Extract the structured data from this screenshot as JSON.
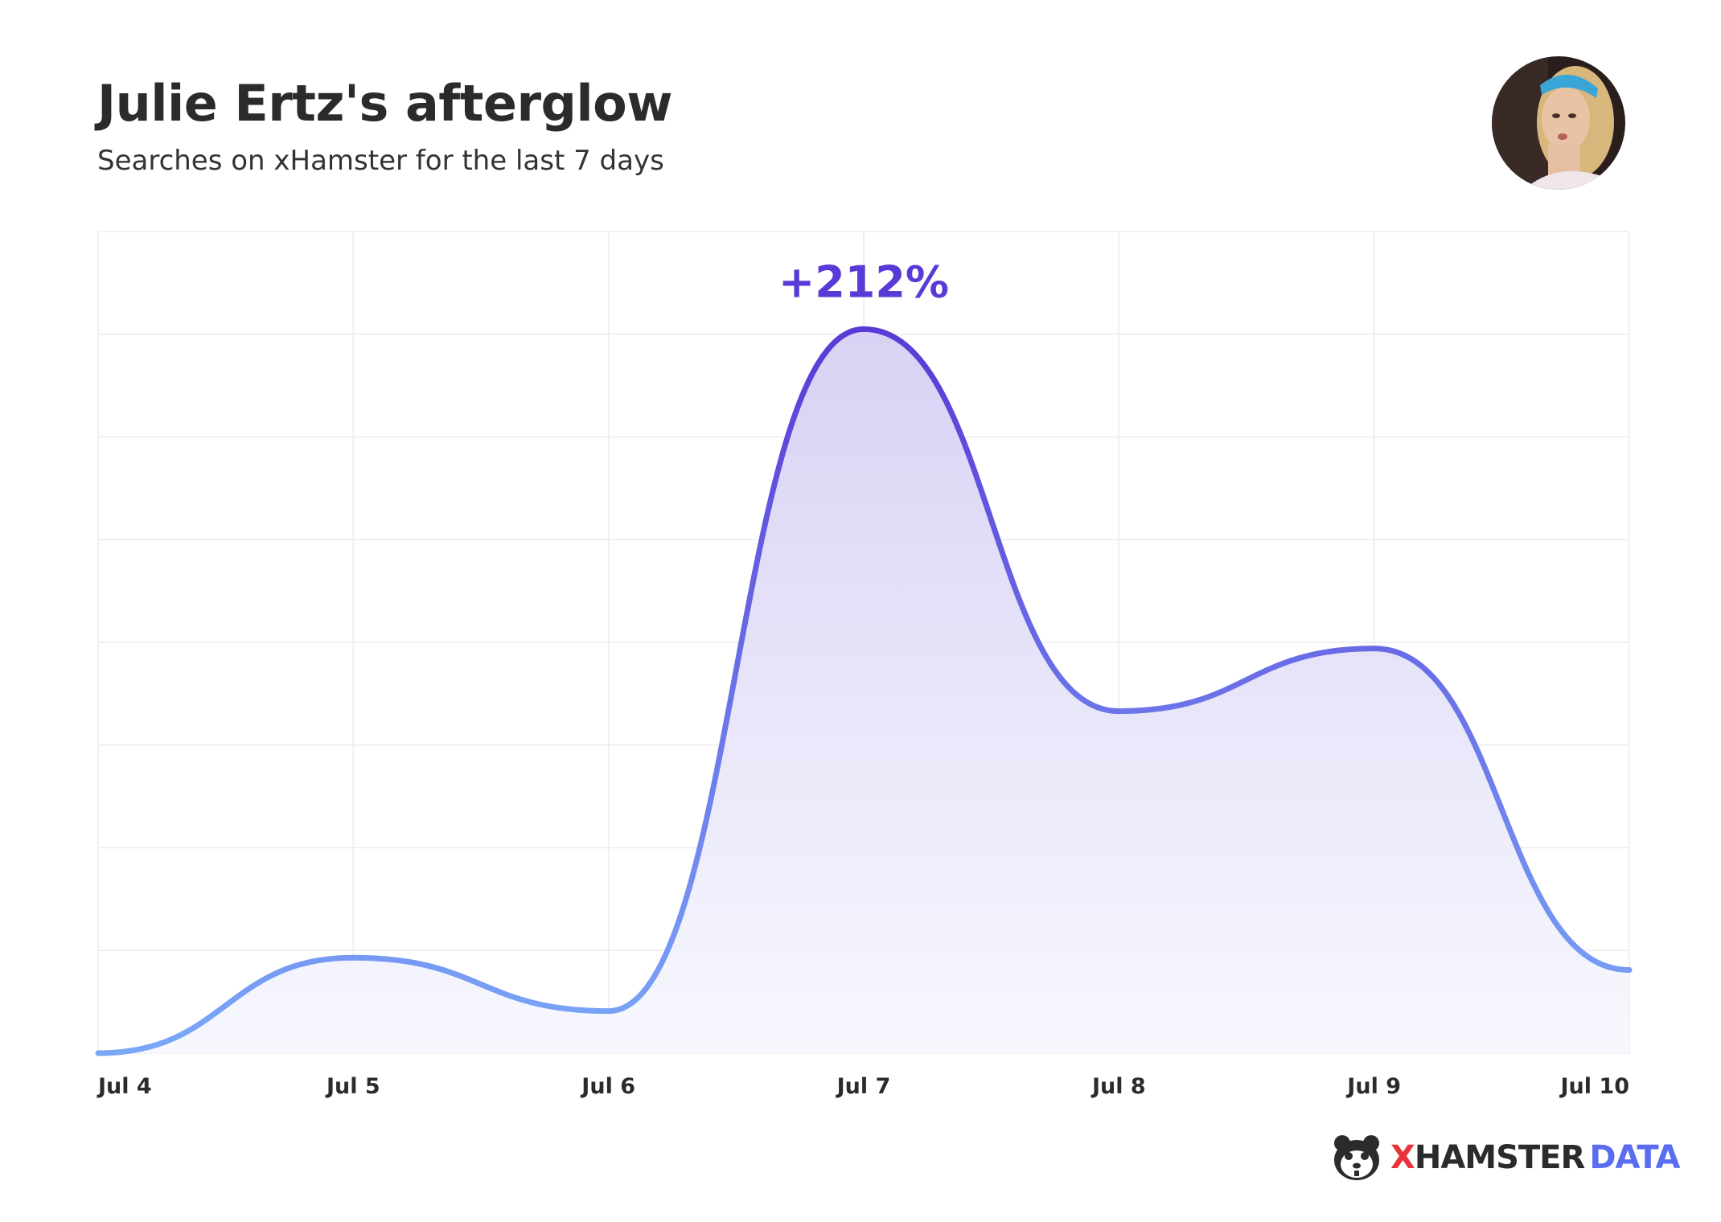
{
  "header": {
    "title": "Julie Ertz's afterglow",
    "subtitle": "Searches on xHamster for the last 7 days"
  },
  "avatar": {
    "icon": "player-portrait"
  },
  "chart_data": {
    "type": "area",
    "categories": [
      "Jul 4",
      "Jul 5",
      "Jul 6",
      "Jul 7",
      "Jul 8",
      "Jul 9",
      "Jul 10"
    ],
    "values": [
      0,
      9.3,
      4.1,
      70.5,
      33.3,
      39.4,
      8.1
    ],
    "ylim": [
      0,
      80
    ],
    "y_gridlines": 8,
    "grid": true,
    "peak_annotation": {
      "text": "+212%",
      "category": "Jul 7"
    },
    "colors": {
      "line_top": "#5a3ad6",
      "line_bottom": "#7aa8f8",
      "fill_top": "#d8d2f4",
      "fill_bottom": "#f7f8fe",
      "grid": "#ececec",
      "annotation": "#5a3ad6",
      "tick_label": "#2b2b2b"
    }
  },
  "brand": {
    "x": "X",
    "hamster": "HAMSTER",
    "data": "DATA",
    "icon": "hamster-logo-icon"
  }
}
